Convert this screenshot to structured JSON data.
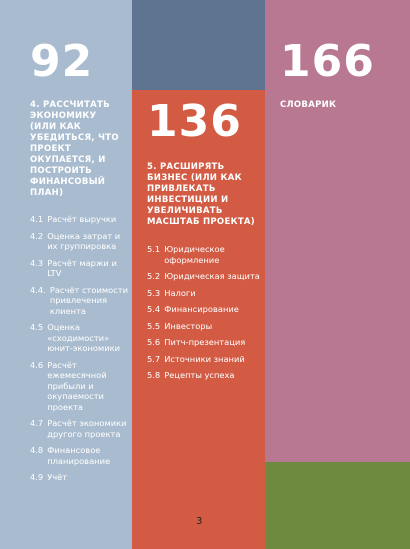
{
  "columns": [
    {
      "page": "92",
      "heading": "4. РАССЧИТАТЬ ЭКОНОМИКУ (ИЛИ КАК УБЕДИТЬСЯ, ЧТО ПРОЕКТ ОКУПАЕТСЯ, И ПОСТРОИТЬ ФИНАНСОВЫЙ ПЛАН)",
      "items": [
        {
          "number": "4.1",
          "title": "Расчёт выручки"
        },
        {
          "number": "4.2",
          "title": "Оценка затрат и их группировка"
        },
        {
          "number": "4.3",
          "title": "Расчёт маржи и LTV"
        },
        {
          "number": "4.4.",
          "title": "Расчёт стоимости привлечения клиента"
        },
        {
          "number": "4.5",
          "title": "Оценка «сходимости» юнит-экономики"
        },
        {
          "number": "4.6",
          "title": "Расчёт ежемесячной прибыли и окупаемости проекта"
        },
        {
          "number": "4.7",
          "title": "Расчёт экономики другого проекта"
        },
        {
          "number": "4.8",
          "title": "Финансовое планирование"
        },
        {
          "number": "4.9",
          "title": "Учёт"
        }
      ]
    },
    {
      "page": "136",
      "heading": "5. РАСШИРЯТЬ БИЗНЕС (ИЛИ КАК ПРИВЛЕКАТЬ ИНВЕСТИЦИИ И УВЕЛИЧИВАТЬ МАСШТАБ ПРОЕКТА)",
      "items": [
        {
          "number": "5.1",
          "title": "Юридическое оформление"
        },
        {
          "number": "5.2",
          "title": "Юридическая защита"
        },
        {
          "number": "5.3",
          "title": "Налоги"
        },
        {
          "number": "5.4",
          "title": "Финансирование"
        },
        {
          "number": "5.5",
          "title": "Инвесторы"
        },
        {
          "number": "5.6",
          "title": "Питч-презентация"
        },
        {
          "number": "5.7",
          "title": "Источники знаний"
        },
        {
          "number": "5.8",
          "title": "Рецепты успеха"
        }
      ]
    },
    {
      "page": "166",
      "heading": "СЛОВАРИК"
    }
  ],
  "page_number": "3"
}
